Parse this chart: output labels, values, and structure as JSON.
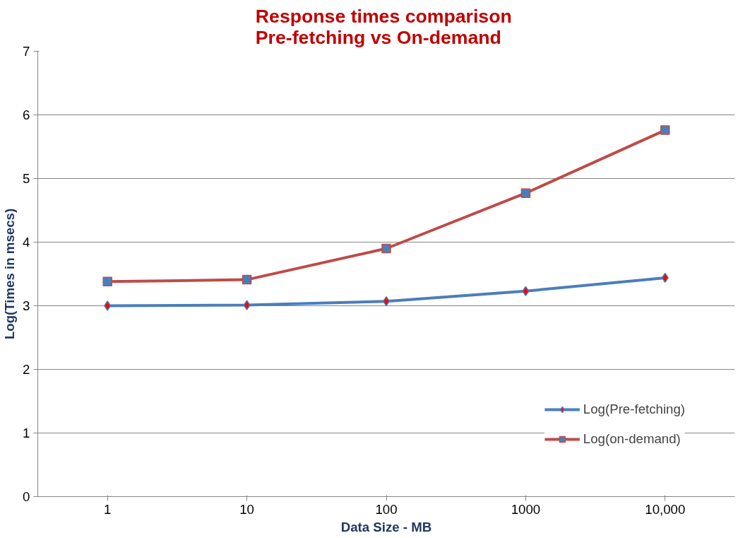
{
  "chart_data": {
    "type": "line",
    "title": "Response times  comparison\nPre-fetching vs On-demand",
    "xlabel": "Data Size - MB",
    "ylabel": "Log(Times in msecs)",
    "categories": [
      "1",
      "10",
      "100",
      "1000",
      "10,000"
    ],
    "series": [
      {
        "name": "Log(Pre-fetching)",
        "color": "#4a7ebb",
        "marker": "diamond",
        "values": [
          3.0,
          3.01,
          3.07,
          3.23,
          3.44
        ]
      },
      {
        "name": "Log(on-demand)",
        "color": "#be4b48",
        "marker": "square",
        "values": [
          3.38,
          3.41,
          3.9,
          4.77,
          5.76
        ]
      }
    ],
    "ylim": [
      0,
      7
    ],
    "yticks": [
      0,
      1,
      2,
      3,
      4,
      5,
      6,
      7
    ],
    "grid": "y",
    "legend": "bottom right",
    "line_style": "solid"
  }
}
